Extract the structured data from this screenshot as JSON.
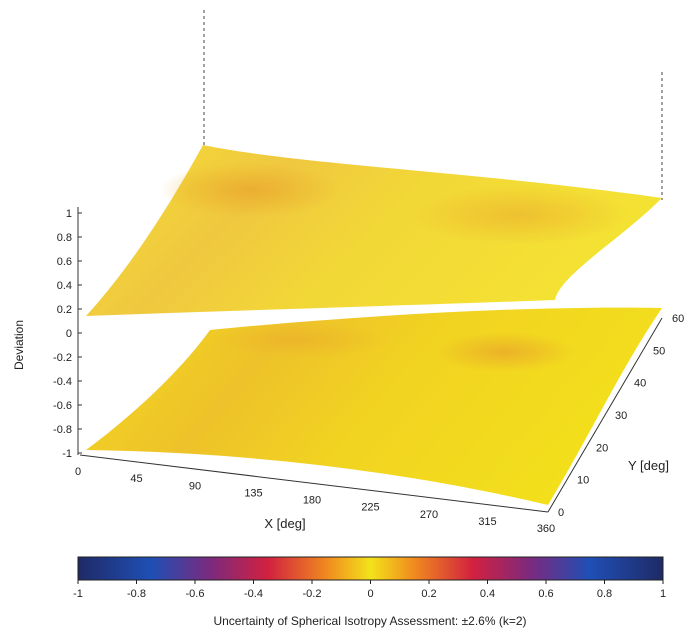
{
  "chart_data": {
    "type": "surface",
    "xlabel": "X [deg]",
    "ylabel": "Y [deg]",
    "zlabel": "Deviation",
    "x_ticks": [
      "0",
      "45",
      "90",
      "135",
      "180",
      "225",
      "270",
      "315",
      "360"
    ],
    "y_ticks": [
      "0",
      "10",
      "20",
      "30",
      "40",
      "50",
      "60"
    ],
    "z_ticks": [
      "1",
      "0.8",
      "0.6",
      "0.4",
      "0.2",
      "0",
      "-0.2",
      "-0.4",
      "-0.6",
      "-0.8",
      "-1"
    ],
    "xlim": [
      0,
      360
    ],
    "ylim": [
      0,
      60
    ],
    "zlim": [
      -1,
      1
    ],
    "grid": false,
    "surface_deviation_approx": [
      -0.02,
      0.0
    ],
    "colorbar": {
      "ticks": [
        "-1",
        "-0.8",
        "-0.6",
        "-0.4",
        "-0.2",
        "0",
        "0.2",
        "0.4",
        "0.6",
        "0.8",
        "1"
      ],
      "range": [
        -1,
        1
      ],
      "stops": [
        {
          "value": -1,
          "color": "#1f2a66"
        },
        {
          "value": -0.75,
          "color": "#1f4fb5"
        },
        {
          "value": -0.55,
          "color": "#7a2a7f"
        },
        {
          "value": -0.35,
          "color": "#d2213f"
        },
        {
          "value": -0.15,
          "color": "#f08a1f"
        },
        {
          "value": 0,
          "color": "#f3e21a"
        },
        {
          "value": 0.15,
          "color": "#f08a1f"
        },
        {
          "value": 0.35,
          "color": "#d2213f"
        },
        {
          "value": 0.55,
          "color": "#7a2a7f"
        },
        {
          "value": 0.75,
          "color": "#1f4fb5"
        },
        {
          "value": 1,
          "color": "#1f2a66"
        }
      ],
      "caption": "Uncertainty of Spherical Isotropy Assessment: ±2.6% (k=2)"
    },
    "colors": {
      "surface_main": "#f2d21f",
      "surface_orange": "#e8a22a",
      "axis": "#333333"
    }
  }
}
